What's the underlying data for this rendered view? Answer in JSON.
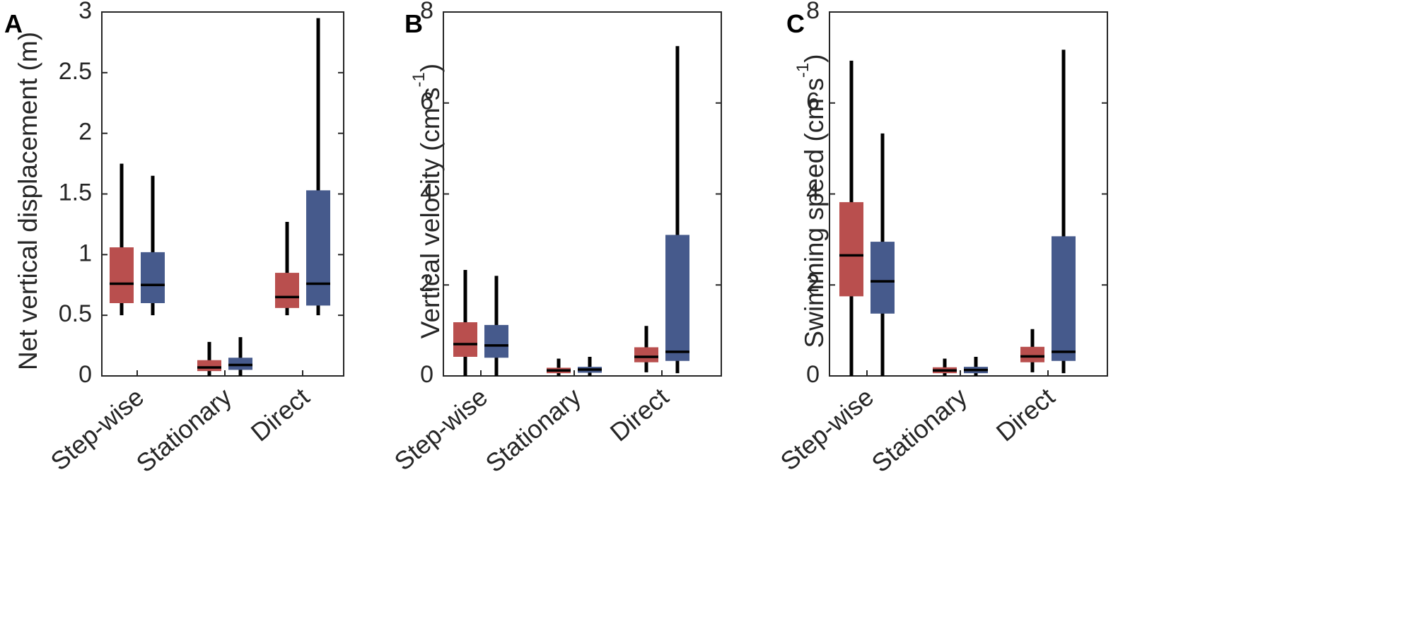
{
  "colors": {
    "red": "#B94F4E",
    "blue": "#465A8C",
    "axis": "#262626",
    "whisker": "#000000"
  },
  "chart_data": [
    {
      "panel": "A",
      "type": "boxplot",
      "ylabel": "Net vertical displacement (m)",
      "ylim": [
        0,
        3
      ],
      "yticks": [
        0,
        0.5,
        1,
        1.5,
        2,
        2.5,
        3
      ],
      "ytick_labels": [
        "0",
        "0.5",
        "1",
        "1.5",
        "2",
        "2.5",
        "3"
      ],
      "categories": [
        "Step-wise",
        "Stationary",
        "Direct"
      ],
      "series": [
        {
          "name": "red",
          "boxes": [
            {
              "min": 0.5,
              "q1": 0.6,
              "median": 0.76,
              "q3": 1.06,
              "max": 1.75
            },
            {
              "min": 0.0,
              "q1": 0.04,
              "median": 0.07,
              "q3": 0.13,
              "max": 0.28
            },
            {
              "min": 0.5,
              "q1": 0.56,
              "median": 0.65,
              "q3": 0.85,
              "max": 1.27
            }
          ]
        },
        {
          "name": "blue",
          "boxes": [
            {
              "min": 0.5,
              "q1": 0.6,
              "median": 0.75,
              "q3": 1.02,
              "max": 1.65
            },
            {
              "min": 0.0,
              "q1": 0.05,
              "median": 0.09,
              "q3": 0.15,
              "max": 0.32
            },
            {
              "min": 0.5,
              "q1": 0.58,
              "median": 0.76,
              "q3": 1.53,
              "max": 2.95
            }
          ]
        }
      ]
    },
    {
      "panel": "B",
      "type": "boxplot",
      "ylabel": "Vertical velocity (cm s",
      "ylabel_sup": "-1",
      "ylabel_end": ")",
      "ylim": [
        0,
        8
      ],
      "yticks": [
        0,
        2,
        4,
        6,
        8
      ],
      "ytick_labels": [
        "0",
        "2",
        "4",
        "6",
        "8"
      ],
      "categories": [
        "Step-wise",
        "Stationary",
        "Direct"
      ],
      "series": [
        {
          "name": "red",
          "boxes": [
            {
              "min": 0.0,
              "q1": 0.42,
              "median": 0.7,
              "q3": 1.18,
              "max": 2.33
            },
            {
              "min": 0.0,
              "q1": 0.06,
              "median": 0.12,
              "q3": 0.18,
              "max": 0.38
            },
            {
              "min": 0.08,
              "q1": 0.3,
              "median": 0.42,
              "q3": 0.63,
              "max": 1.1
            }
          ]
        },
        {
          "name": "blue",
          "boxes": [
            {
              "min": 0.0,
              "q1": 0.4,
              "median": 0.67,
              "q3": 1.12,
              "max": 2.2
            },
            {
              "min": 0.0,
              "q1": 0.07,
              "median": 0.14,
              "q3": 0.2,
              "max": 0.42
            },
            {
              "min": 0.06,
              "q1": 0.33,
              "median": 0.53,
              "q3": 3.1,
              "max": 7.25
            }
          ]
        }
      ]
    },
    {
      "panel": "C",
      "type": "boxplot",
      "ylabel": "Swimming speed (cm s",
      "ylabel_sup": "-1",
      "ylabel_end": ")",
      "ylim": [
        0,
        8
      ],
      "yticks": [
        0,
        2,
        4,
        6,
        8
      ],
      "ytick_labels": [
        "0",
        "2",
        "4",
        "6",
        "8"
      ],
      "categories": [
        "Step-wise",
        "Stationary",
        "Direct"
      ],
      "series": [
        {
          "name": "red",
          "boxes": [
            {
              "min": 0.0,
              "q1": 1.75,
              "median": 2.65,
              "q3": 3.82,
              "max": 6.93
            },
            {
              "min": 0.0,
              "q1": 0.06,
              "median": 0.12,
              "q3": 0.19,
              "max": 0.38
            },
            {
              "min": 0.08,
              "q1": 0.3,
              "median": 0.43,
              "q3": 0.64,
              "max": 1.03
            }
          ]
        },
        {
          "name": "blue",
          "boxes": [
            {
              "min": 0.0,
              "q1": 1.37,
              "median": 2.08,
              "q3": 2.95,
              "max": 5.33
            },
            {
              "min": 0.0,
              "q1": 0.06,
              "median": 0.13,
              "q3": 0.2,
              "max": 0.42
            },
            {
              "min": 0.06,
              "q1": 0.33,
              "median": 0.53,
              "q3": 3.07,
              "max": 7.17
            }
          ]
        }
      ]
    }
  ]
}
